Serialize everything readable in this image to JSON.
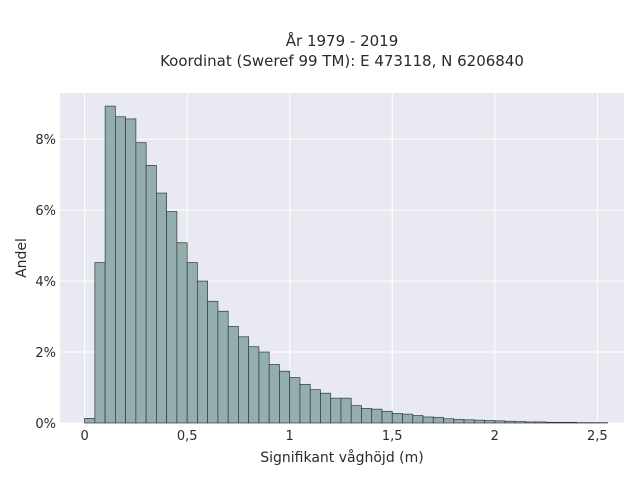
{
  "chart_data": {
    "type": "bar",
    "title_lines": [
      "År 1979 - 2019",
      "Koordinat (Sweref 99 TM): E 473118, N 6206840"
    ],
    "xlabel": "Signifikant våghöjd (m)",
    "ylabel": "Andel",
    "xlim": [
      -0.12,
      2.63
    ],
    "ylim": [
      0,
      0.093
    ],
    "x_ticks": [
      0,
      0.5,
      1,
      1.5,
      2,
      2.5
    ],
    "x_tick_labels": [
      "0",
      "0,5",
      "1",
      "1,5",
      "2",
      "2,5"
    ],
    "y_ticks": [
      0,
      0.02,
      0.04,
      0.06,
      0.08
    ],
    "y_tick_labels": [
      "0%",
      "2%",
      "4%",
      "6%",
      "8%"
    ],
    "bin_width": 0.05,
    "bin_starts": [
      0.0,
      0.05,
      0.1,
      0.15,
      0.2,
      0.25,
      0.3,
      0.35,
      0.4,
      0.45,
      0.5,
      0.55,
      0.6,
      0.65,
      0.7,
      0.75,
      0.8,
      0.85,
      0.9,
      0.95,
      1.0,
      1.05,
      1.1,
      1.15,
      1.2,
      1.25,
      1.3,
      1.35,
      1.4,
      1.45,
      1.5,
      1.55,
      1.6,
      1.65,
      1.7,
      1.75,
      1.8,
      1.85,
      1.9,
      1.95,
      2.0,
      2.05,
      2.1,
      2.15,
      2.2,
      2.25,
      2.3,
      2.35,
      2.4,
      2.45,
      2.5
    ],
    "values": [
      0.0013,
      0.0452,
      0.0893,
      0.0863,
      0.0857,
      0.079,
      0.0726,
      0.0648,
      0.0596,
      0.0508,
      0.0452,
      0.04,
      0.0343,
      0.0315,
      0.0272,
      0.0243,
      0.0215,
      0.02,
      0.0165,
      0.0146,
      0.0128,
      0.0109,
      0.0094,
      0.0084,
      0.007,
      0.007,
      0.0049,
      0.0041,
      0.0039,
      0.0033,
      0.0027,
      0.0025,
      0.0021,
      0.0017,
      0.0016,
      0.0012,
      0.001,
      0.0009,
      0.0008,
      0.0007,
      0.0006,
      0.0005,
      0.0004,
      0.0003,
      0.0003,
      0.0002,
      0.0002,
      0.0002,
      0.0001,
      0.0001,
      0.0001
    ],
    "grid": true,
    "colors": {
      "bar_fill": "#93aeac",
      "bar_stroke": "#2f3a3a",
      "plot_bg": "#e9e9f1",
      "grid": "#ffffff"
    }
  }
}
